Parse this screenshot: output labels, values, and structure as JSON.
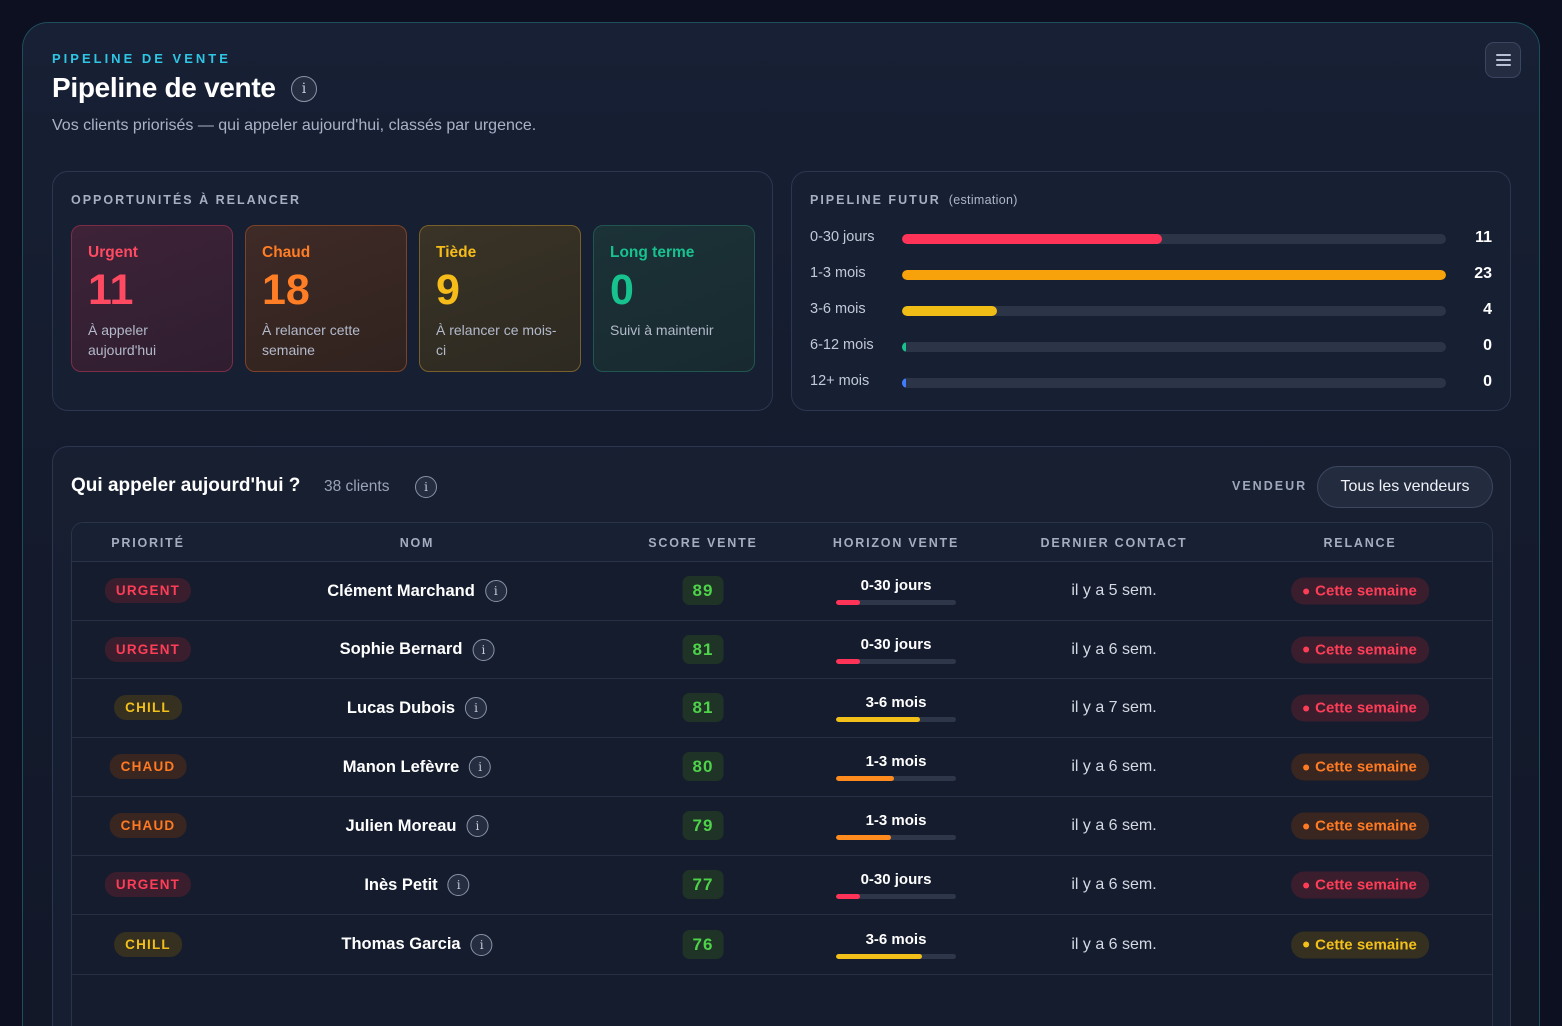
{
  "header": {
    "eyebrow": "PIPELINE DE VENTE",
    "title": "Pipeline de vente",
    "info_icon": "i",
    "subtitle": "Vos clients priorisés — qui appeler aujourd'hui, classés par urgence."
  },
  "opportunities": {
    "label": "OPPORTUNITÉS À RELANCER",
    "cards": [
      {
        "name": "Urgent",
        "count": "11",
        "desc": "À appeler aujourd'hui"
      },
      {
        "name": "Chaud",
        "count": "18",
        "desc": "À relancer cette semaine"
      },
      {
        "name": "Tiède",
        "count": "9",
        "desc": "À relancer ce mois-ci"
      },
      {
        "name": "Long terme",
        "count": "0",
        "desc": "Suivi à maintenir"
      }
    ]
  },
  "future": {
    "label": "PIPELINE FUTUR",
    "estimation": "(estimation)",
    "max": 23,
    "rows": [
      {
        "label": "0-30 jours",
        "count": 11,
        "color": "#ff3358"
      },
      {
        "label": "1-3 mois",
        "count": 23,
        "color": "#f7a10b"
      },
      {
        "label": "3-6 mois",
        "count": 4,
        "color": "#f0bc16"
      },
      {
        "label": "6-12 mois",
        "count": 0,
        "color": "#18c28f"
      },
      {
        "label": "12+ mois",
        "count": 0,
        "color": "#3f7dff"
      }
    ]
  },
  "table": {
    "title": "Qui appeler aujourd'hui ?",
    "count": "38 clients",
    "info_icon": "i",
    "vendor_label": "VENDEUR",
    "vendor_value": "Tous les vendeurs",
    "columns": [
      "PRIORITÉ",
      "NOM",
      "SCORE VENTE",
      "HORIZON VENTE",
      "DERNIER CONTACT",
      "RELANCE"
    ],
    "rows": [
      {
        "priority": "URGENT",
        "level": "urgent",
        "name": "Clément Marchand",
        "score": "89",
        "horizon": "0-30 jours",
        "horizon_fill": 0.2,
        "horizon_color": "#ff3358",
        "contact": "il y a 5 sem.",
        "relance": "Cette semaine",
        "relance_level": "urgent"
      },
      {
        "priority": "URGENT",
        "level": "urgent",
        "name": "Sophie Bernard",
        "score": "81",
        "horizon": "0-30 jours",
        "horizon_fill": 0.2,
        "horizon_color": "#ff3358",
        "contact": "il y a 6 sem.",
        "relance": "Cette semaine",
        "relance_level": "urgent"
      },
      {
        "priority": "CHILL",
        "level": "chill",
        "name": "Lucas Dubois",
        "score": "81",
        "horizon": "3-6 mois",
        "horizon_fill": 0.7,
        "horizon_color": "#f3c01a",
        "contact": "il y a 7 sem.",
        "relance": "Cette semaine",
        "relance_level": "urgent"
      },
      {
        "priority": "CHAUD",
        "level": "chaud",
        "name": "Manon Lefèvre",
        "score": "80",
        "horizon": "1-3 mois",
        "horizon_fill": 0.48,
        "horizon_color": "#ff8a1e",
        "contact": "il y a 6 sem.",
        "relance": "Cette semaine",
        "relance_level": "chaud"
      },
      {
        "priority": "CHAUD",
        "level": "chaud",
        "name": "Julien Moreau",
        "score": "79",
        "horizon": "1-3 mois",
        "horizon_fill": 0.46,
        "horizon_color": "#ff8a1e",
        "contact": "il y a 6 sem.",
        "relance": "Cette semaine",
        "relance_level": "chaud"
      },
      {
        "priority": "URGENT",
        "level": "urgent",
        "name": "Inès Petit",
        "score": "77",
        "horizon": "0-30 jours",
        "horizon_fill": 0.2,
        "horizon_color": "#ff3358",
        "contact": "il y a 6 sem.",
        "relance": "Cette semaine",
        "relance_level": "urgent"
      },
      {
        "priority": "CHILL",
        "level": "chill",
        "name": "Thomas Garcia",
        "score": "76",
        "horizon": "3-6 mois",
        "horizon_fill": 0.72,
        "horizon_color": "#f3c01a",
        "contact": "il y a 6 sem.",
        "relance": "Cette semaine",
        "relance_level": "chill"
      }
    ]
  }
}
